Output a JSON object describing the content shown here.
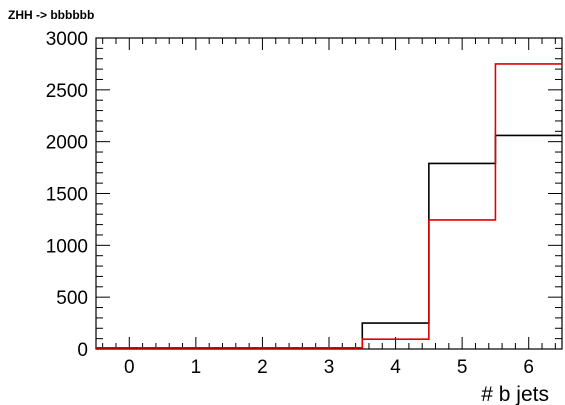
{
  "chart_data": {
    "type": "histogram",
    "title": "ZHH -> bbbbbb",
    "xlabel": "# b jets",
    "ylabel": "",
    "xlim": [
      -0.5,
      6.5
    ],
    "ylim": [
      0,
      3000
    ],
    "x_ticks": [
      "0",
      "1",
      "2",
      "3",
      "4",
      "5",
      "6"
    ],
    "y_ticks": [
      "0",
      "500",
      "1000",
      "1500",
      "2000",
      "2500",
      "3000"
    ],
    "bin_edges": [
      -0.5,
      0.5,
      1.5,
      2.5,
      3.5,
      4.5,
      5.5,
      6.5
    ],
    "series": [
      {
        "color": "#000000",
        "values": [
          10,
          10,
          10,
          10,
          250,
          1790,
          2060
        ]
      },
      {
        "color": "#e00000",
        "values": [
          10,
          10,
          10,
          10,
          95,
          1245,
          2750
        ]
      }
    ],
    "grid": false
  }
}
